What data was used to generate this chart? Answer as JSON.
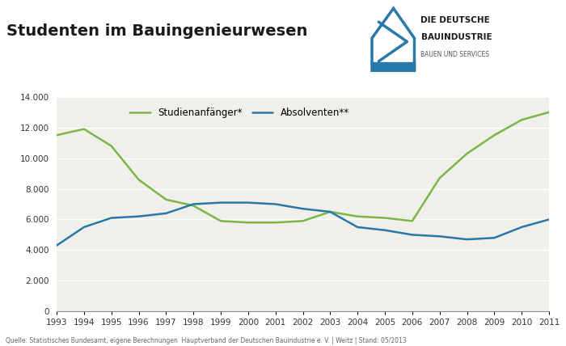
{
  "title": "Studenten im Bauingenieurwesen",
  "years": [
    1993,
    1994,
    1995,
    1996,
    1997,
    1998,
    1999,
    2000,
    2001,
    2002,
    2003,
    2004,
    2005,
    2006,
    2007,
    2008,
    2009,
    2010,
    2011
  ],
  "studienanfaenger": [
    11500,
    11900,
    10800,
    8600,
    7300,
    6900,
    5900,
    5800,
    5800,
    5900,
    6500,
    6200,
    6100,
    5900,
    8700,
    10300,
    11500,
    12500,
    13000
  ],
  "absolventen": [
    4300,
    5500,
    6100,
    6200,
    6400,
    7000,
    7100,
    7100,
    7000,
    6700,
    6500,
    5500,
    5300,
    5000,
    4900,
    4700,
    4800,
    5500,
    6000
  ],
  "line_color_studienanfaenger": "#7ab648",
  "line_color_absolventen": "#2878a8",
  "background_fig": "#f5f5f0",
  "background_chart": "#f5f5f0",
  "background_top": "#ffffff",
  "ylim": [
    0,
    14000
  ],
  "ytick_step": 2000,
  "legend_studienanfaenger": "Studienanfänger*",
  "legend_absolventen": "Absolventen**",
  "logo_color": "#2878a8",
  "logo_text1": "DIE DEUTSCHE",
  "logo_text2": "BAUINDUSTRIE",
  "logo_text3": "BAUEN UND SERVICES",
  "footer": "Quelle: Statistisches Bundesamt, eigene Berechnungen  Hauptverband der Deutschen Bauindustrie e. V. | Weitz | Stand: 05/2013"
}
